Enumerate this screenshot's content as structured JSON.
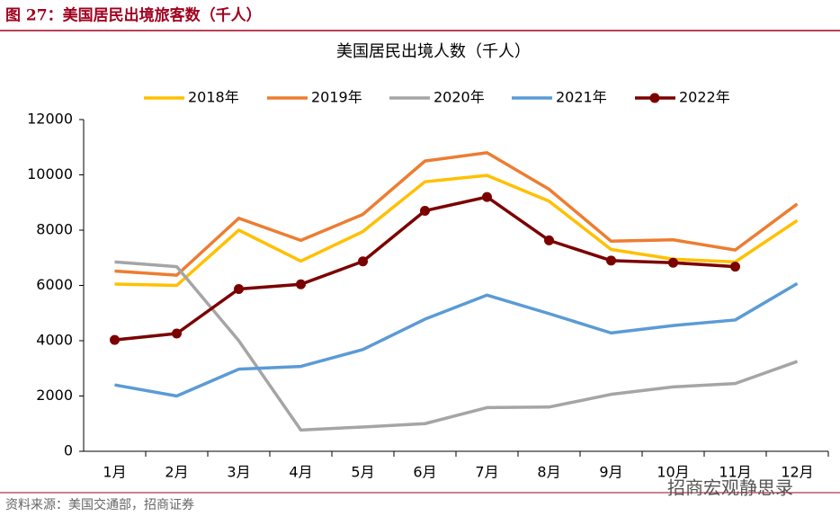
{
  "header": {
    "title": "图 27：美国居民出境旅客数（千人）"
  },
  "chart_data": {
    "type": "line",
    "title": "美国居民出境人数（千人）",
    "categories": [
      "1月",
      "2月",
      "3月",
      "4月",
      "5月",
      "6月",
      "7月",
      "8月",
      "9月",
      "10月",
      "11月",
      "12月"
    ],
    "series": [
      {
        "name": "2018年",
        "color": "#ffc000",
        "values": [
          6050,
          6000,
          8000,
          6880,
          7950,
          9750,
          9980,
          9050,
          7300,
          6950,
          6850,
          8350
        ]
      },
      {
        "name": "2019年",
        "color": "#ed7d31",
        "values": [
          6520,
          6370,
          8430,
          7630,
          8570,
          10500,
          10800,
          9480,
          7600,
          7650,
          7280,
          8950
        ]
      },
      {
        "name": "2020年",
        "color": "#a5a5a5",
        "values": [
          6850,
          6680,
          4000,
          770,
          880,
          1000,
          1580,
          1600,
          2060,
          2330,
          2450,
          3250
        ]
      },
      {
        "name": "2021年",
        "color": "#5b9bd5",
        "values": [
          2400,
          2000,
          2970,
          3070,
          3680,
          4780,
          5650,
          4980,
          4280,
          4550,
          4750,
          6070
        ]
      },
      {
        "name": "2022年",
        "color": "#7b0000",
        "markers": true,
        "values": [
          4030,
          4260,
          5870,
          6040,
          6870,
          8700,
          9200,
          7630,
          6900,
          6820,
          6680,
          null
        ]
      }
    ],
    "ylim": [
      0,
      12000
    ],
    "yticks": [
      0,
      2000,
      4000,
      6000,
      8000,
      10000,
      12000
    ],
    "grid": false,
    "legend": "top"
  },
  "footer": {
    "source": "资料来源：美国交通部，招商证券",
    "watermark": "招商宏观静思录"
  }
}
